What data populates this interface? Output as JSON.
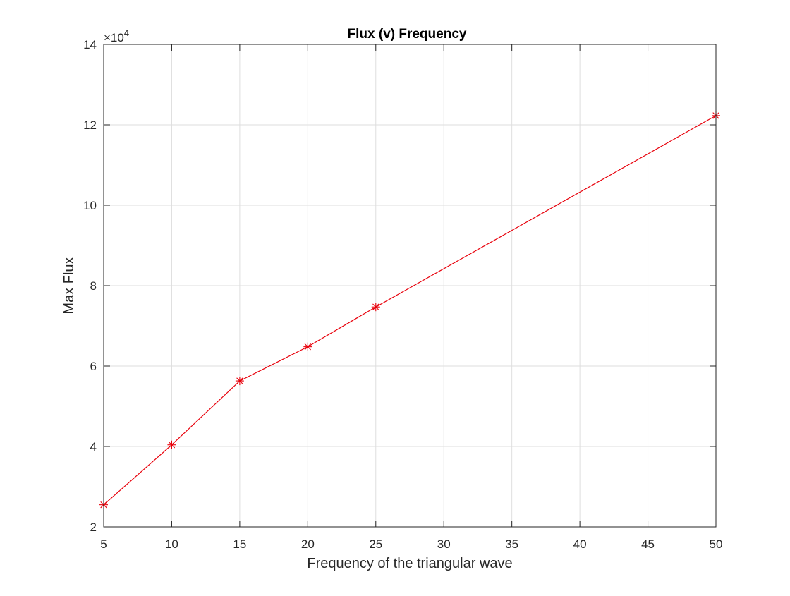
{
  "chart_data": {
    "type": "line",
    "title": "Flux (v) Frequency",
    "xlabel": "Frequency of the triangular wave",
    "ylabel": "Max Flux",
    "y_exponent_label": "×10",
    "y_exponent_power": "4",
    "xlim": [
      5,
      50
    ],
    "ylim": [
      2,
      14
    ],
    "xticks": [
      "5",
      "10",
      "15",
      "20",
      "25",
      "30",
      "35",
      "40",
      "45",
      "50"
    ],
    "yticks": [
      "2",
      "4",
      "6",
      "8",
      "10",
      "12",
      "14"
    ],
    "grid": true,
    "series": [
      {
        "color": "#e8000b",
        "marker": "asterisk",
        "x": [
          5,
          10,
          15,
          20,
          25,
          50
        ],
        "y": [
          2.55,
          4.04,
          5.63,
          6.48,
          7.47,
          12.23
        ]
      }
    ],
    "y_scale_note": "values shown in units of 10^4"
  }
}
